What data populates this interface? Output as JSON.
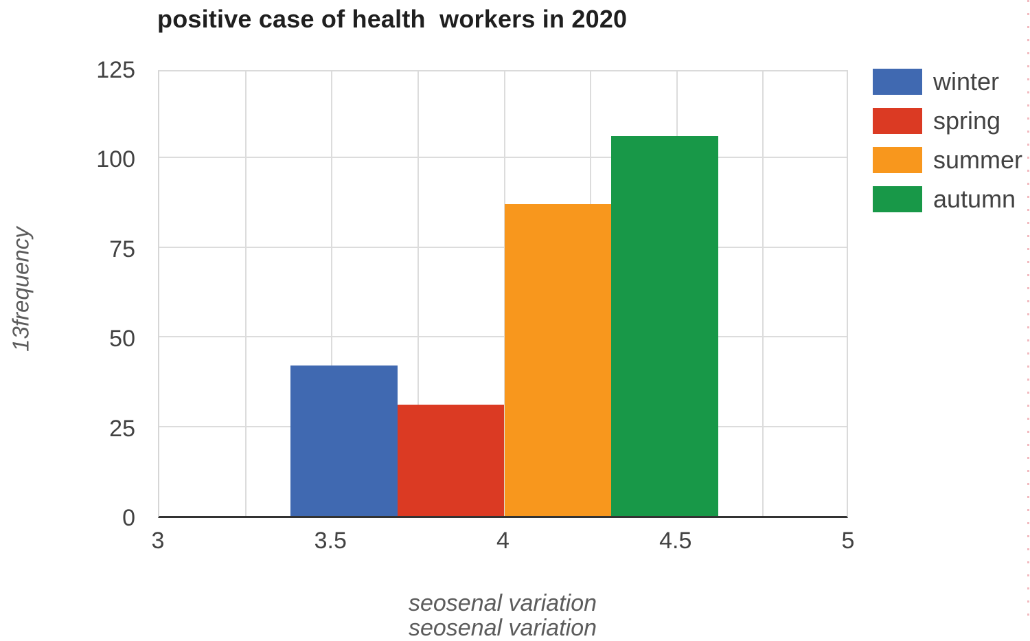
{
  "page": {
    "background": "#ffffff",
    "edge_artifact_color": "#eb969e"
  },
  "chart_data": {
    "type": "bar",
    "title": "positive case of health  workers in 2020",
    "xlabel": "seosenal variation",
    "xlabel_clipped_repeat": "seosenal variation",
    "ylabel": "13frequency",
    "xlim": [
      3,
      5
    ],
    "ylim": [
      0,
      125
    ],
    "x_minor_step": 0.25,
    "grid": true,
    "legend_position": "right",
    "x_ticks": [
      {
        "value": 3,
        "label": "3"
      },
      {
        "value": 3.5,
        "label": "3.5"
      },
      {
        "value": 4,
        "label": "4"
      },
      {
        "value": 4.5,
        "label": "4.5"
      },
      {
        "value": 5,
        "label": "5"
      }
    ],
    "y_ticks": [
      {
        "value": 0,
        "label": "0"
      },
      {
        "value": 25,
        "label": "25"
      },
      {
        "value": 50,
        "label": "50"
      },
      {
        "value": 75,
        "label": "75"
      },
      {
        "value": 100,
        "label": "100"
      },
      {
        "value": 125,
        "label": "125"
      }
    ],
    "series": [
      {
        "name": "winter",
        "color": "#4069B1",
        "x_start": 3.38,
        "x_end": 3.69,
        "value": 42
      },
      {
        "name": "spring",
        "color": "#DB3A23",
        "x_start": 3.69,
        "x_end": 4.0,
        "value": 31
      },
      {
        "name": "summer",
        "color": "#F8971D",
        "x_start": 4.0,
        "x_end": 4.31,
        "value": 87
      },
      {
        "name": "autumn",
        "color": "#189848",
        "x_start": 4.31,
        "x_end": 4.62,
        "value": 106
      }
    ]
  }
}
